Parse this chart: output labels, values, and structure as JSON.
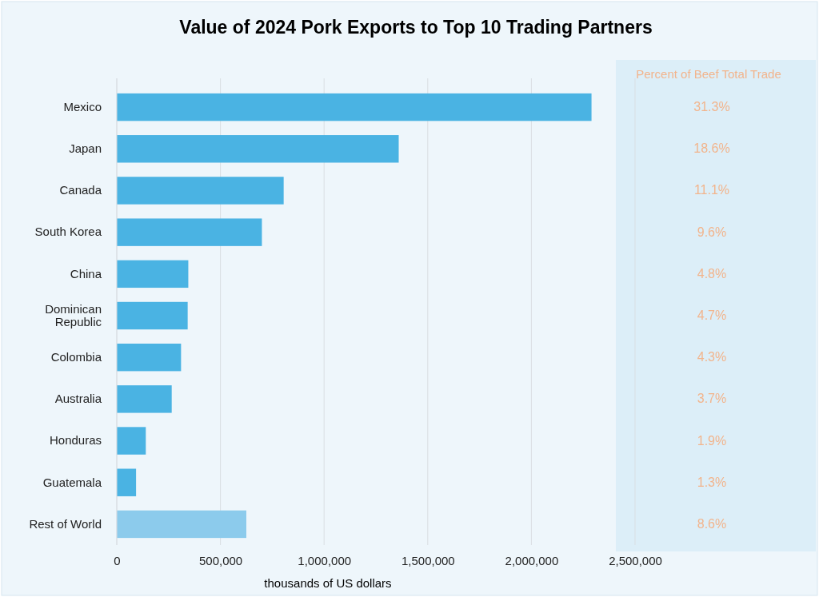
{
  "chart_data": {
    "type": "bar",
    "orientation": "horizontal",
    "title": "Value of 2024 Pork Exports to Top 10 Trading Partners",
    "xlabel": "thousands of US dollars",
    "categories": [
      "Mexico",
      "Japan",
      "Canada",
      "South Korea",
      "China",
      "Dominican Republic",
      "Colombia",
      "Australia",
      "Honduras",
      "Guatemala",
      "Rest of World"
    ],
    "values": [
      2290000,
      1360000,
      805000,
      700000,
      345000,
      342000,
      310000,
      265000,
      140000,
      93000,
      625000
    ],
    "colors": [
      "#4ab3e3",
      "#4ab3e3",
      "#4ab3e3",
      "#4ab3e3",
      "#4ab3e3",
      "#4ab3e3",
      "#4ab3e3",
      "#4ab3e3",
      "#4ab3e3",
      "#4ab3e3",
      "#8ccbec"
    ],
    "xlim": [
      0,
      2500000
    ],
    "xticks": [
      {
        "value": 0,
        "label": "0"
      },
      {
        "value": 500000,
        "label": "500,000"
      },
      {
        "value": 1000000,
        "label": "1,000,000"
      },
      {
        "value": 1500000,
        "label": "1,500,000"
      },
      {
        "value": 2000000,
        "label": "2,000,000"
      },
      {
        "value": 2500000,
        "label": "2,500,000"
      }
    ],
    "grid": "x",
    "annotations": [
      "Percent of Beef Total Trade",
      "31.3%",
      "18.6%",
      "11.1%",
      "9.6%",
      "4.8%",
      "4.7%",
      "4.3%",
      "3.7%",
      "1.9%",
      "1.3%",
      "8.6%"
    ]
  }
}
